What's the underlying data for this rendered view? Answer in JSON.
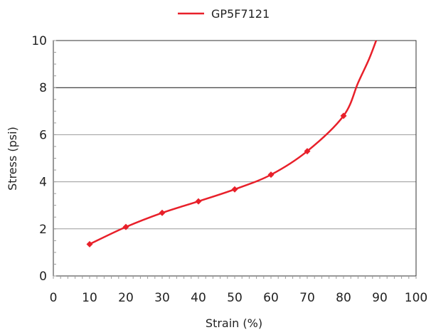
{
  "chart_data": {
    "type": "line",
    "title": "",
    "xlabel": "Strain (%)",
    "ylabel": "Stress (psi)",
    "xlim": [
      0,
      100
    ],
    "ylim": [
      0,
      10
    ],
    "x_ticks": [
      "0",
      "10",
      "20",
      "30",
      "40",
      "50",
      "60",
      "70",
      "80",
      "90",
      "100"
    ],
    "y_ticks": [
      "0",
      "2",
      "4",
      "6",
      "8",
      "10"
    ],
    "grid": "horizontal",
    "legend_position": "top",
    "series": [
      {
        "name": "GP5F7121",
        "color": "#e8202a",
        "marker": "diamond",
        "x": [
          10,
          20,
          30,
          40,
          50,
          60,
          70,
          80
        ],
        "y": [
          1.35,
          2.08,
          2.68,
          3.17,
          3.68,
          4.3,
          5.3,
          6.8
        ],
        "curve_extension": {
          "x": [
            84,
            87,
            89
          ],
          "y": [
            8.2,
            9.2,
            10.0
          ]
        }
      }
    ]
  }
}
